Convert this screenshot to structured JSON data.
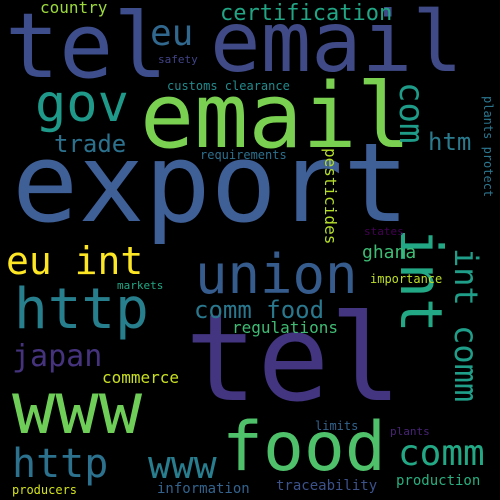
{
  "word_cloud": {
    "background": "#000000",
    "words": [
      {
        "text": "export",
        "color": "#3f5f97"
      },
      {
        "text": "tel",
        "color": "#433580"
      },
      {
        "text": "tel",
        "color": "#3e4e8c"
      },
      {
        "text": "email",
        "color": "#3f4a86"
      },
      {
        "text": "email",
        "color": "#7ad151"
      },
      {
        "text": "www",
        "color": "#6ece58"
      },
      {
        "text": "food",
        "color": "#4fc16b"
      },
      {
        "text": "union",
        "color": "#365c8d"
      },
      {
        "text": "http",
        "color": "#277f8e"
      },
      {
        "text": "int",
        "color": "#22a884"
      },
      {
        "text": "gov",
        "color": "#1f9a8a"
      },
      {
        "text": "eu int",
        "color": "#fde725"
      },
      {
        "text": "http",
        "color": "#2c728e"
      },
      {
        "text": "www",
        "color": "#287d8e"
      },
      {
        "text": "comm",
        "color": "#22a884"
      },
      {
        "text": "int comm",
        "color": "#1f9e89"
      },
      {
        "text": "com",
        "color": "#1e9c89"
      },
      {
        "text": "eu",
        "color": "#31688e"
      },
      {
        "text": "japan",
        "color": "#46337e"
      },
      {
        "text": "comm food",
        "color": "#2a788e"
      },
      {
        "text": "trade",
        "color": "#2c728e"
      },
      {
        "text": "certification",
        "color": "#21a685"
      },
      {
        "text": "htm",
        "color": "#2a7b8e"
      },
      {
        "text": "country",
        "color": "#9bd93c"
      },
      {
        "text": "regulations",
        "color": "#3fbc73"
      },
      {
        "text": "pesticides",
        "color": "#b5de2b"
      },
      {
        "text": "ghana",
        "color": "#3dbc74"
      },
      {
        "text": "commerce",
        "color": "#c8e020"
      },
      {
        "text": "information",
        "color": "#33638d"
      },
      {
        "text": "traceability",
        "color": "#3b528b"
      },
      {
        "text": "production",
        "color": "#29af7f"
      },
      {
        "text": "producers",
        "color": "#d2e21b"
      },
      {
        "text": "customs clearance",
        "color": "#238a8d"
      },
      {
        "text": "requirements",
        "color": "#2d708e"
      },
      {
        "text": "markets",
        "color": "#22a785"
      },
      {
        "text": "importance",
        "color": "#bddf26"
      },
      {
        "text": "plants protect",
        "color": "#2b758e"
      },
      {
        "text": "safety",
        "color": "#414487"
      },
      {
        "text": "limits",
        "color": "#33638d"
      },
      {
        "text": "plants",
        "color": "#482475"
      },
      {
        "text": "states",
        "color": "#440154"
      }
    ]
  }
}
